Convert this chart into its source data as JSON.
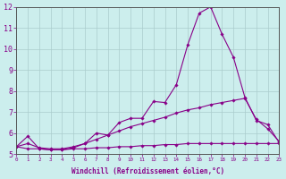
{
  "xlabel": "Windchill (Refroidissement éolien,°C)",
  "background_color": "#cceeed",
  "grid_color": "#aacccc",
  "line_color": "#880088",
  "x_min": 0,
  "x_max": 23,
  "y_min": 5,
  "y_max": 12,
  "line1_x": [
    0,
    1,
    2,
    3,
    4,
    5,
    6,
    7,
    8,
    9,
    10,
    11,
    12,
    13,
    14,
    15,
    16,
    17,
    18,
    19,
    20,
    21,
    22,
    23
  ],
  "line1_y": [
    5.35,
    5.85,
    5.25,
    5.2,
    5.2,
    5.3,
    5.5,
    6.0,
    5.9,
    6.5,
    6.7,
    6.7,
    7.5,
    7.45,
    8.3,
    10.2,
    11.7,
    12.0,
    10.7,
    9.6,
    7.7,
    6.6,
    6.4,
    5.55
  ],
  "line2_x": [
    0,
    1,
    2,
    3,
    4,
    5,
    6,
    7,
    8,
    9,
    10,
    11,
    12,
    13,
    14,
    15,
    16,
    17,
    18,
    19,
    20,
    21,
    22,
    23
  ],
  "line2_y": [
    5.35,
    5.5,
    5.3,
    5.25,
    5.25,
    5.35,
    5.5,
    5.7,
    5.9,
    6.1,
    6.3,
    6.45,
    6.6,
    6.75,
    6.95,
    7.1,
    7.2,
    7.35,
    7.45,
    7.55,
    7.65,
    6.65,
    6.2,
    5.6
  ],
  "line3_x": [
    0,
    1,
    2,
    3,
    4,
    5,
    6,
    7,
    8,
    9,
    10,
    11,
    12,
    13,
    14,
    15,
    16,
    17,
    18,
    19,
    20,
    21,
    22,
    23
  ],
  "line3_y": [
    5.35,
    5.25,
    5.25,
    5.2,
    5.2,
    5.25,
    5.25,
    5.3,
    5.3,
    5.35,
    5.35,
    5.4,
    5.4,
    5.45,
    5.45,
    5.5,
    5.5,
    5.5,
    5.5,
    5.5,
    5.5,
    5.5,
    5.5,
    5.5
  ]
}
